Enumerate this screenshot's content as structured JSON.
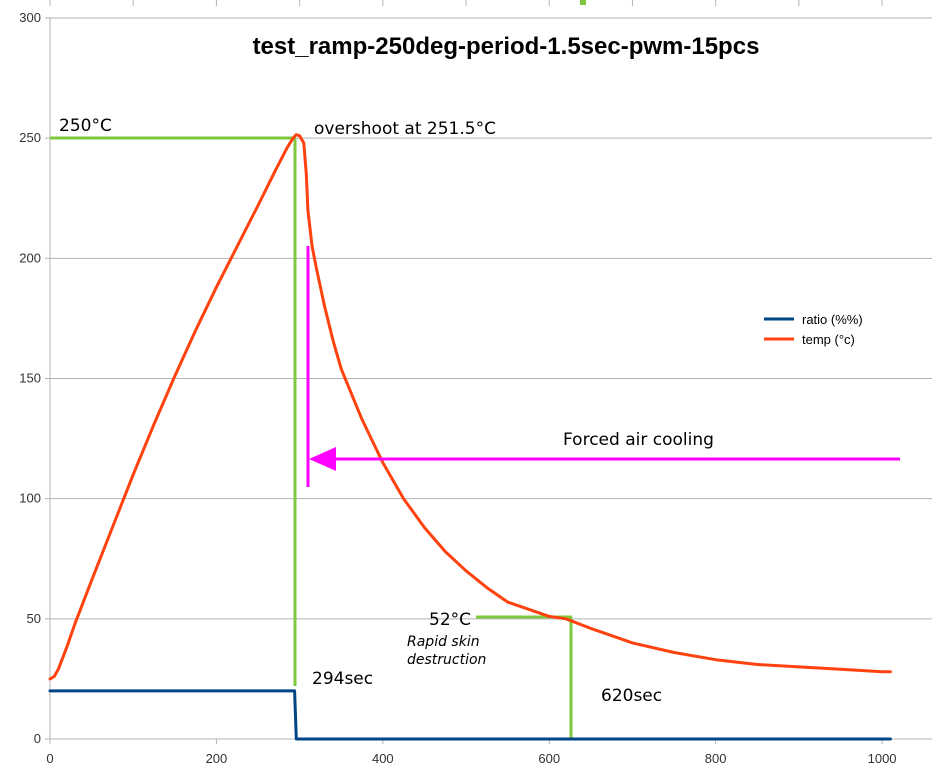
{
  "chart_data": {
    "type": "line",
    "title": "test_ramp-250deg-period-1.5sec-pwm-15pcs",
    "xlabel": "",
    "ylabel": "",
    "xlim": [
      0,
      1060
    ],
    "ylim": [
      0,
      300
    ],
    "x_ticks": [
      "0",
      "200",
      "400",
      "600",
      "800",
      "1000"
    ],
    "y_ticks": [
      "0",
      "50",
      "100",
      "150",
      "200",
      "250",
      "300"
    ],
    "x_tick_values": [
      0,
      200,
      400,
      600,
      800,
      1000
    ],
    "y_tick_values": [
      0,
      50,
      100,
      150,
      200,
      250,
      300
    ],
    "grid": true,
    "legend_position": "right",
    "series": [
      {
        "name": "ratio (%%)",
        "color": "#004586",
        "x": [
          0,
          294,
          296,
          1010
        ],
        "y": [
          20,
          20,
          0,
          0
        ]
      },
      {
        "name": "temp (°c)",
        "color": "#ff420e",
        "x": [
          0,
          5,
          10,
          20,
          30,
          40,
          50,
          75,
          100,
          125,
          150,
          175,
          200,
          225,
          250,
          270,
          285,
          292,
          296,
          300,
          305,
          308,
          310,
          315,
          320,
          330,
          340,
          350,
          375,
          400,
          425,
          450,
          475,
          500,
          525,
          550,
          575,
          600,
          620,
          650,
          700,
          750,
          800,
          850,
          900,
          950,
          1000,
          1010
        ],
        "y": [
          25,
          26,
          29,
          38,
          48,
          57,
          66,
          88,
          110,
          131,
          151,
          170,
          188,
          205,
          222,
          236,
          246,
          250,
          251.5,
          251,
          248,
          235,
          220,
          205,
          196,
          180,
          166,
          154,
          133,
          115,
          100,
          88,
          78,
          70,
          63,
          57,
          54,
          51,
          50,
          46,
          40,
          36,
          33,
          31,
          30,
          29,
          28,
          28
        ]
      }
    ],
    "annotations": {
      "label_250": "250°C",
      "overshoot": "overshoot at 251.5°C",
      "forced_air": "Forced air cooling",
      "label_52": "52°C",
      "rapid_skin": "Rapid skin",
      "destruction": "destruction",
      "t294": "294sec",
      "t620": "620sec"
    },
    "annotation_colors": {
      "marker_lines": "#7dc83d",
      "forced_air_arrow": "#ff00ff",
      "grid": "#b3b3b3"
    }
  }
}
